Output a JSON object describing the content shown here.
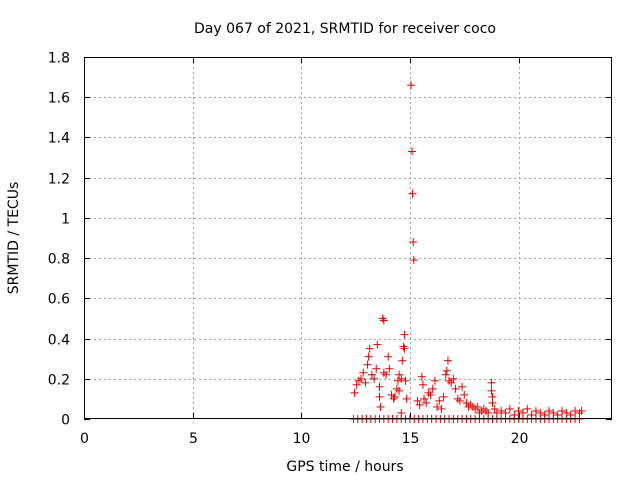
{
  "chart_data": {
    "type": "scatter",
    "title": "Day 067 of 2021, SRMTID for receiver coco",
    "xlabel": "GPS time / hours",
    "ylabel": "SRMTID / TECUs",
    "xlim": [
      0,
      24.3
    ],
    "ylim": [
      0,
      1.8
    ],
    "xticks": [
      0,
      5,
      10,
      15,
      20
    ],
    "xtick_labels": [
      "0",
      "5",
      "10",
      "15",
      "20"
    ],
    "yticks": [
      0,
      0.2,
      0.4,
      0.6,
      0.8,
      1.0,
      1.2,
      1.4,
      1.6,
      1.8
    ],
    "ytick_labels": [
      "0",
      "0.2",
      "0.4",
      "0.6",
      "0.8",
      "1",
      "1.2",
      "1.4",
      "1.6",
      "1.8"
    ],
    "grid": true,
    "marker": "+",
    "marker_color": "#e00000",
    "series": [
      {
        "name": "SRMTID",
        "points": [
          [
            12.45,
            0.13
          ],
          [
            12.55,
            0.17
          ],
          [
            12.65,
            0.19
          ],
          [
            12.75,
            0.2
          ],
          [
            12.85,
            0.23
          ],
          [
            12.95,
            0.18
          ],
          [
            13.05,
            0.27
          ],
          [
            13.1,
            0.31
          ],
          [
            13.15,
            0.35
          ],
          [
            13.25,
            0.22
          ],
          [
            13.35,
            0.2
          ],
          [
            13.45,
            0.25
          ],
          [
            13.5,
            0.37
          ],
          [
            13.6,
            0.16
          ],
          [
            13.6,
            0.11
          ],
          [
            13.65,
            0.06
          ],
          [
            13.75,
            0.5
          ],
          [
            13.8,
            0.49
          ],
          [
            13.8,
            0.23
          ],
          [
            13.9,
            0.22
          ],
          [
            14.0,
            0.31
          ],
          [
            14.05,
            0.25
          ],
          [
            14.15,
            0.12
          ],
          [
            14.25,
            0.1
          ],
          [
            14.3,
            0.11
          ],
          [
            14.4,
            0.15
          ],
          [
            14.45,
            0.19
          ],
          [
            14.5,
            0.22
          ],
          [
            14.5,
            0.14
          ],
          [
            14.6,
            0.2
          ],
          [
            14.65,
            0.29
          ],
          [
            14.6,
            0.03
          ],
          [
            14.7,
            0.36
          ],
          [
            14.75,
            0.35
          ],
          [
            14.75,
            0.42
          ],
          [
            14.8,
            0.19
          ],
          [
            14.85,
            0.1
          ],
          [
            15.05,
            1.66
          ],
          [
            15.1,
            1.33
          ],
          [
            15.12,
            1.12
          ],
          [
            15.15,
            0.88
          ],
          [
            15.18,
            0.79
          ],
          [
            15.35,
            0.09
          ],
          [
            15.45,
            0.07
          ],
          [
            15.55,
            0.21
          ],
          [
            15.6,
            0.17
          ],
          [
            15.65,
            0.1
          ],
          [
            15.75,
            0.08
          ],
          [
            15.85,
            0.13
          ],
          [
            15.95,
            0.12
          ],
          [
            16.05,
            0.15
          ],
          [
            16.15,
            0.19
          ],
          [
            16.25,
            0.06
          ],
          [
            16.35,
            0.09
          ],
          [
            16.45,
            0.05
          ],
          [
            16.55,
            0.11
          ],
          [
            16.65,
            0.22
          ],
          [
            16.7,
            0.24
          ],
          [
            16.75,
            0.29
          ],
          [
            16.8,
            0.19
          ],
          [
            16.9,
            0.18
          ],
          [
            17.0,
            0.2
          ],
          [
            17.1,
            0.15
          ],
          [
            17.2,
            0.1
          ],
          [
            17.3,
            0.09
          ],
          [
            17.4,
            0.16
          ],
          [
            17.5,
            0.12
          ],
          [
            17.6,
            0.08
          ],
          [
            17.7,
            0.06
          ],
          [
            17.8,
            0.07
          ],
          [
            17.9,
            0.06
          ],
          [
            18.0,
            0.05
          ],
          [
            18.1,
            0.06
          ],
          [
            18.2,
            0.03
          ],
          [
            18.3,
            0.04
          ],
          [
            18.4,
            0.05
          ],
          [
            18.5,
            0.04
          ],
          [
            18.6,
            0.03
          ],
          [
            18.75,
            0.18
          ],
          [
            18.75,
            0.14
          ],
          [
            18.8,
            0.11
          ],
          [
            18.8,
            0.08
          ],
          [
            18.9,
            0.05
          ],
          [
            19.0,
            0.03
          ],
          [
            19.2,
            0.04
          ],
          [
            19.4,
            0.03
          ],
          [
            19.6,
            0.05
          ],
          [
            19.8,
            0.02
          ],
          [
            20.0,
            0.04
          ],
          [
            20.2,
            0.03
          ],
          [
            20.4,
            0.05
          ],
          [
            20.6,
            0.02
          ],
          [
            20.8,
            0.04
          ],
          [
            21.0,
            0.03
          ],
          [
            21.2,
            0.02
          ],
          [
            21.4,
            0.04
          ],
          [
            21.6,
            0.03
          ],
          [
            21.8,
            0.02
          ],
          [
            22.0,
            0.04
          ],
          [
            22.2,
            0.03
          ],
          [
            22.4,
            0.02
          ],
          [
            22.6,
            0.04
          ],
          [
            22.8,
            0.03
          ],
          [
            22.9,
            0.04
          ],
          [
            12.4,
            0.0
          ],
          [
            12.6,
            0.0
          ],
          [
            12.8,
            0.0
          ],
          [
            13.0,
            0.0
          ],
          [
            13.2,
            0.0
          ],
          [
            13.4,
            0.0
          ],
          [
            13.6,
            0.0
          ],
          [
            13.8,
            0.0
          ],
          [
            14.0,
            0.0
          ],
          [
            14.2,
            0.0
          ],
          [
            14.4,
            0.0
          ],
          [
            14.6,
            0.0
          ],
          [
            14.8,
            0.0
          ],
          [
            15.0,
            0.0
          ],
          [
            15.2,
            0.0
          ],
          [
            15.4,
            0.0
          ],
          [
            15.6,
            0.0
          ],
          [
            15.8,
            0.0
          ],
          [
            16.0,
            0.0
          ],
          [
            16.2,
            0.0
          ],
          [
            16.4,
            0.0
          ],
          [
            16.6,
            0.0
          ],
          [
            16.8,
            0.0
          ],
          [
            17.0,
            0.0
          ],
          [
            17.2,
            0.0
          ],
          [
            17.4,
            0.0
          ],
          [
            17.6,
            0.0
          ],
          [
            17.8,
            0.0
          ],
          [
            18.0,
            0.0
          ],
          [
            18.2,
            0.0
          ],
          [
            18.4,
            0.0
          ],
          [
            18.6,
            0.0
          ],
          [
            18.8,
            0.0
          ],
          [
            19.0,
            0.0
          ],
          [
            19.2,
            0.0
          ],
          [
            19.4,
            0.0
          ],
          [
            19.6,
            0.0
          ],
          [
            19.8,
            0.0
          ],
          [
            20.0,
            0.0
          ],
          [
            20.2,
            0.0
          ],
          [
            20.4,
            0.0
          ],
          [
            20.6,
            0.0
          ],
          [
            20.8,
            0.0
          ],
          [
            21.0,
            0.0
          ],
          [
            21.2,
            0.0
          ],
          [
            21.4,
            0.0
          ],
          [
            21.6,
            0.0
          ],
          [
            21.8,
            0.0
          ],
          [
            22.0,
            0.0
          ],
          [
            22.2,
            0.0
          ],
          [
            22.4,
            0.0
          ],
          [
            22.6,
            0.0
          ],
          [
            22.8,
            0.0
          ]
        ]
      }
    ]
  }
}
